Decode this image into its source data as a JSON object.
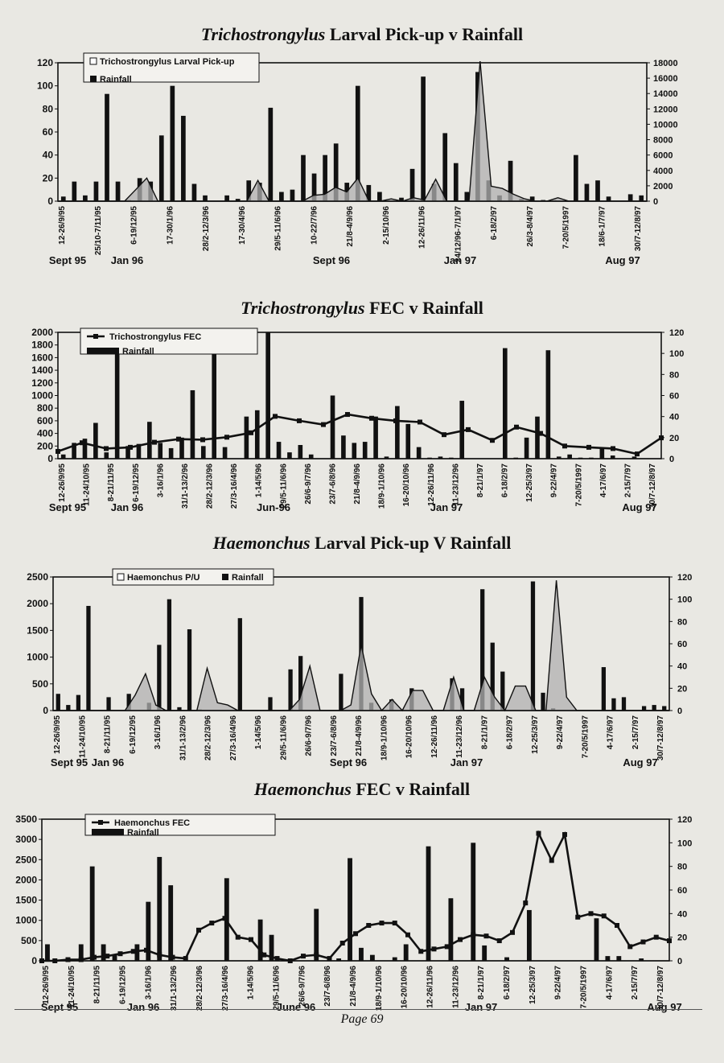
{
  "page": {
    "number_label": "Page 69"
  },
  "colors": {
    "bar": "#111111",
    "line": "#111111",
    "area": "#b0b0b0",
    "background": "#e9e8e3"
  },
  "chart_data": [
    {
      "type": "bar+area",
      "title_italic": "Trichostrongylus",
      "title_rest": " Larval Pick-up v Rainfall",
      "ylim_left": [
        0,
        120
      ],
      "yticks_left": [
        "0",
        "20",
        "40",
        "60",
        "80",
        "100",
        "120"
      ],
      "ylim_right": [
        0,
        18000
      ],
      "yticks_right": [
        "0",
        "2000",
        "4000",
        "6000",
        "8000",
        "10000",
        "12000",
        "14000",
        "16000",
        "18000"
      ],
      "legend": [
        "Trichostrongylus Larval Pick-up",
        "Rainfall"
      ],
      "date_labels": [
        "12-26/9/95",
        "25/10-7/11/95",
        "6-19/12/95",
        "17-30/1/96",
        "28/2-12/3/96",
        "17-30/4/96",
        "29/5-11/6/96",
        "10-22/7/96",
        "21/8-4/9/96",
        "2-15/10/96",
        "12-26/11/96",
        "24/12/96-7/1/97",
        "6-18/2/97",
        "26/3-8/4/97",
        "7-20/5/1997",
        "18/6-1/7/97",
        "30/7-12/8/97"
      ],
      "period_labels": [
        "Sept 95",
        "Jan 96",
        "Sept 96",
        "Jan 97",
        "Aug 97"
      ],
      "rainfall": [
        4,
        17,
        5,
        17,
        93,
        17,
        1,
        20,
        17,
        57,
        100,
        74,
        15,
        5,
        0,
        5,
        2,
        18,
        16,
        81,
        8,
        10,
        40,
        24,
        40,
        50,
        16,
        100,
        14,
        8,
        0,
        3,
        28,
        108,
        15,
        59,
        33,
        8,
        112,
        18,
        5,
        35,
        2,
        4,
        1,
        1,
        0,
        40,
        15,
        18,
        4,
        0,
        6,
        5
      ],
      "larval": [
        0,
        0,
        0,
        0,
        0,
        0,
        0,
        10,
        20,
        0,
        0,
        0,
        0,
        0,
        0,
        0,
        0,
        0,
        18,
        0,
        0,
        0,
        0,
        5,
        6,
        12,
        8,
        20,
        0,
        0,
        2,
        0,
        3,
        1,
        19,
        0,
        0,
        0,
        170,
        13,
        11,
        6,
        2,
        0,
        0,
        3,
        0,
        0,
        0,
        0,
        0,
        0,
        0,
        0
      ]
    },
    {
      "type": "bar+line",
      "title_italic": "Trichostrongylus",
      "title_rest": " FEC v Rainfall",
      "ylim_left": [
        0,
        2000
      ],
      "yticks_left": [
        "0",
        "200",
        "400",
        "600",
        "800",
        "1000",
        "1200",
        "1400",
        "1600",
        "1800",
        "2000"
      ],
      "ylim_right": [
        0,
        120
      ],
      "yticks_right": [
        "0",
        "20",
        "40",
        "60",
        "80",
        "100",
        "120"
      ],
      "legend": [
        "Trichostrongylus FEC",
        "Rainfall"
      ],
      "date_labels": [
        "12-26/9/95",
        "11-24/10/95",
        "8-21/11/95",
        "6-19/12/95",
        "3-16/1/96",
        "31/1-13/2/96",
        "28/2-12/3/96",
        "27/3-16/4/96",
        "1-14/5/96",
        "29/5-11/6/96",
        "26/6-9/7/96",
        "23/7-6/8/96",
        "21/8-4/9/96",
        "18/9-1/10/96",
        "16-20/10/96",
        "12-26/11/96",
        "11-23/12/96",
        "8-21/1/97",
        "6-18/2/97",
        "12-25/3/97",
        "9-22/4/97",
        "7-20/5/1997",
        "4-17/6/97",
        "2-15/7/97",
        "30/7-12/8/97"
      ],
      "period_labels": [
        "Sept 95",
        "Jan 96",
        "Jun-96",
        "Jan 97",
        "Aug 97"
      ],
      "rainfall": [
        4,
        15,
        19,
        34,
        6,
        100,
        12,
        14,
        35,
        15,
        10,
        20,
        65,
        12,
        102,
        11,
        0,
        40,
        46,
        120,
        16,
        6,
        13,
        4,
        0,
        60,
        22,
        15,
        16,
        40,
        2,
        50,
        33,
        11,
        1,
        2,
        1,
        55,
        0,
        0,
        0,
        105,
        1,
        20,
        40,
        103,
        2,
        4,
        1,
        1,
        10,
        3,
        0,
        2,
        0,
        0
      ],
      "fec": [
        115,
        252,
        160,
        180,
        260,
        310,
        300,
        340,
        410,
        670,
        600,
        540,
        700,
        640,
        600,
        580,
        380,
        460,
        290,
        500,
        400,
        200,
        180,
        160,
        75,
        330
      ],
      "fec_scale_note": ""
    },
    {
      "type": "bar+area",
      "title_italic": "Haemonchus",
      "title_rest": " Larval Pick-up V Rainfall",
      "ylim_left": [
        0,
        2500
      ],
      "yticks_left": [
        "0",
        "500",
        "1000",
        "1500",
        "2000",
        "2500"
      ],
      "ylim_right": [
        0,
        120
      ],
      "yticks_right": [
        "0",
        "20",
        "40",
        "60",
        "80",
        "100",
        "120"
      ],
      "legend": [
        "Haemonchus P/U",
        "Rainfall"
      ],
      "date_labels": [
        "12-26/9/95",
        "11-24/10/95",
        "8-21/11/95",
        "6-19/12/95",
        "3-16/1/96",
        "31/1-13/2/96",
        "28/2-12/3/96",
        "27/3-16/4/96",
        "1-14/5/96",
        "29/5-11/6/96",
        "26/6-9/7/96",
        "23/7-6/8/96",
        "21/8-4/9/96",
        "18/9-1/10/96",
        "16-20/10/96",
        "12-26/11/96",
        "11-23/12/96",
        "8-21/1/97",
        "6-18/2/97",
        "12-25/3/97",
        "9-22/4/97",
        "7-20/5/1997",
        "4-17/6/97",
        "2-15/7/97",
        "30/7-12/8/97"
      ],
      "period_labels": [
        "Sept 95",
        "Jan 96",
        "Sept 96",
        "Jan 97",
        "Aug 97"
      ],
      "rainfall": [
        15,
        5,
        14,
        94,
        0,
        12,
        0,
        15,
        0,
        7,
        59,
        100,
        3,
        73,
        1,
        0,
        0,
        0,
        83,
        0,
        0,
        12,
        0,
        37,
        49,
        0,
        0,
        0,
        33,
        0,
        102,
        7,
        0,
        10,
        0,
        20,
        0,
        0,
        0,
        29,
        20,
        0,
        109,
        61,
        35,
        0,
        0,
        116,
        16,
        2,
        0,
        0,
        0,
        0,
        39,
        11,
        12,
        0,
        4,
        5,
        4
      ],
      "larval": [
        0,
        0,
        0,
        0,
        0,
        0,
        0,
        0,
        14,
        33,
        5,
        0,
        0,
        0,
        0,
        38,
        7,
        5,
        0,
        0,
        0,
        0,
        0,
        0,
        10,
        40,
        0,
        0,
        0,
        5,
        59,
        15,
        0,
        10,
        0,
        18,
        18,
        0,
        0,
        30,
        0,
        0,
        30,
        12,
        0,
        22,
        22,
        0,
        0,
        117,
        12,
        0,
        0,
        0,
        0,
        0,
        0,
        0,
        0,
        0,
        0
      ]
    },
    {
      "type": "bar+line",
      "title_italic": "Haemonchus",
      "title_rest": " FEC v Rainfall",
      "ylim_left": [
        0,
        3500
      ],
      "yticks_left": [
        "0",
        "500",
        "1000",
        "1500",
        "2000",
        "2500",
        "3000",
        "3500"
      ],
      "ylim_right": [
        0,
        120
      ],
      "yticks_right": [
        "0",
        "20",
        "40",
        "60",
        "80",
        "100",
        "120"
      ],
      "legend": [
        "Haemonchus FEC",
        "Rainfall"
      ],
      "date_labels": [
        "12-26/9/95",
        "11-24/10/95",
        "8-21/11/95",
        "6-19/12/95",
        "3-16/1/96",
        "31/1-13/2/96",
        "28/2-12/3/96",
        "27/3-16/4/96",
        "1-14/5/96",
        "29/5-11/6/96",
        "26/6-9/7/96",
        "23/7-6/8/96",
        "21/8-4/9/96",
        "18/9-1/10/96",
        "16-20/10/96",
        "12-26/11/96",
        "11-23/12/96",
        "8-21/1/97",
        "6-18/2/97",
        "12-25/3/97",
        "9-22/4/97",
        "7-20/5/1997",
        "4-17/6/97",
        "2-15/7/97",
        "30/7-12/8/97"
      ],
      "period_labels": [
        "Sept 95",
        "Jan 96",
        "June 96",
        "Jan 97",
        "Aug 97"
      ],
      "rainfall": [
        14,
        0,
        0,
        14,
        80,
        14,
        5,
        0,
        14,
        50,
        88,
        64,
        0,
        0,
        0,
        0,
        70,
        0,
        0,
        35,
        22,
        0,
        0,
        0,
        44,
        0,
        2,
        87,
        11,
        5,
        0,
        3,
        14,
        0,
        97,
        0,
        53,
        0,
        100,
        13,
        0,
        3,
        0,
        43,
        0,
        0,
        0,
        0,
        0,
        36,
        4,
        4,
        0,
        2,
        0,
        0
      ],
      "fec": [
        0,
        0,
        1,
        1,
        3,
        4,
        6,
        8,
        9,
        5,
        3,
        2,
        26,
        32,
        36,
        20,
        18,
        5,
        2,
        0,
        4,
        5,
        2,
        15,
        23,
        30,
        32,
        32,
        22,
        8,
        10,
        12,
        18,
        22,
        21,
        17,
        24,
        49,
        108,
        85,
        107,
        37,
        40,
        38,
        30,
        12,
        16,
        20,
        17
      ]
    }
  ]
}
